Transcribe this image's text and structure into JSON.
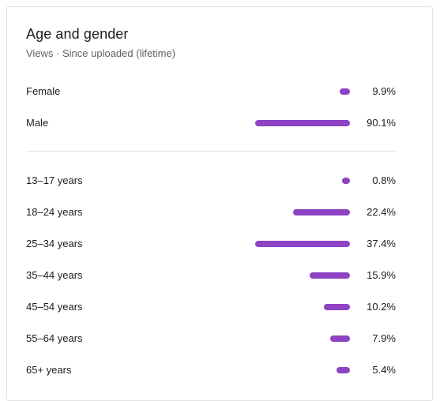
{
  "card": {
    "title": "Age and gender",
    "subtitle": "Views · Since uploaded (lifetime)"
  },
  "colors": {
    "bar": "#8e43c4",
    "divider": "#e3e3e3"
  },
  "gender": [
    {
      "label": "Female",
      "percent_text": "9.9%",
      "value": 9.9
    },
    {
      "label": "Male",
      "percent_text": "90.1%",
      "value": 90.1
    }
  ],
  "age": [
    {
      "label": "13–17 years",
      "percent_text": "0.8%",
      "value": 0.8
    },
    {
      "label": "18–24 years",
      "percent_text": "22.4%",
      "value": 22.4
    },
    {
      "label": "25–34 years",
      "percent_text": "37.4%",
      "value": 37.4
    },
    {
      "label": "35–44 years",
      "percent_text": "15.9%",
      "value": 15.9
    },
    {
      "label": "45–54 years",
      "percent_text": "10.2%",
      "value": 10.2
    },
    {
      "label": "55–64 years",
      "percent_text": "7.9%",
      "value": 7.9
    },
    {
      "label": "65+ years",
      "percent_text": "5.4%",
      "value": 5.4
    }
  ]
}
